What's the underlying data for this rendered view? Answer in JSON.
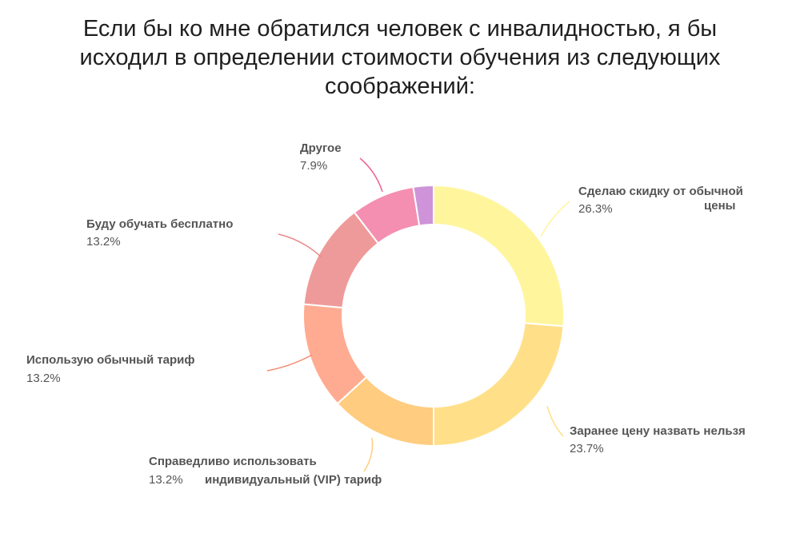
{
  "chart_data": {
    "type": "pie",
    "variant": "donut",
    "title": "Если бы ко мне обратился человек с инвалидностью, я бы исходил в определении стоимости обучения из следующих соображений:",
    "slices": [
      {
        "label_lines": [
          "Сделаю скидку от обычной",
          "цены"
        ],
        "value": 26.3,
        "value_label": "26.3%",
        "color": "#fff59d",
        "leader_color": "#fff59d"
      },
      {
        "label_lines": [
          "Заранее цену назвать нельзя"
        ],
        "value": 23.7,
        "value_label": "23.7%",
        "color": "#ffe089",
        "leader_color": "#ffe089"
      },
      {
        "label_lines": [
          "Справедливо использовать",
          "индивидуальный (VIP) тариф"
        ],
        "value": 13.2,
        "value_label": "13.2%",
        "color": "#ffcc80",
        "leader_color": "#ffcc80"
      },
      {
        "label_lines": [
          "Использую обычный тариф"
        ],
        "value": 13.2,
        "value_label": "13.2%",
        "color": "#ffab91",
        "leader_color": "#f48a70"
      },
      {
        "label_lines": [
          "Буду обучать бесплатно"
        ],
        "value": 13.2,
        "value_label": "13.2%",
        "color": "#ef9a9a",
        "leader_color": "#e88a8a"
      },
      {
        "label_lines": [
          "Другое"
        ],
        "value": 7.9,
        "value_label": "7.9%",
        "color": "#f48fb1",
        "leader_color": "#f06292"
      },
      {
        "label_lines": [
          ""
        ],
        "value": 2.5,
        "value_label": "",
        "color": "#ce93d8",
        "leader_color": "#ce93d8"
      }
    ],
    "legend": "none"
  }
}
